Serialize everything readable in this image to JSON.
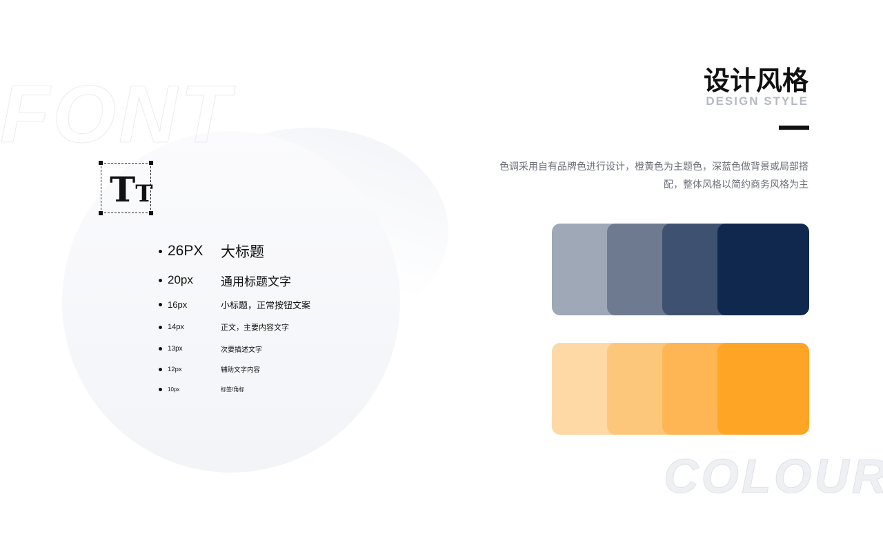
{
  "watermarks": {
    "font": "FONT",
    "colour": "COLOUR"
  },
  "icon": {
    "name": "text-size-icon",
    "big": "T",
    "small": "T"
  },
  "type_scale": [
    {
      "size": "26PX",
      "desc": "大标题"
    },
    {
      "size": "20px",
      "desc": "通用标题文字"
    },
    {
      "size": "16px",
      "desc": "小标题，正常按钮文案"
    },
    {
      "size": "14px",
      "desc": "正文，主要内容文字"
    },
    {
      "size": "13px",
      "desc": "次要描述文字"
    },
    {
      "size": "12px",
      "desc": "辅助文字内容"
    },
    {
      "size": "10px",
      "desc": "标签/角标"
    }
  ],
  "header": {
    "title": "设计风格",
    "subtitle": "DESIGN STYLE"
  },
  "description": "色调采用自有品牌色进行设计，橙黄色为主题色，深蓝色做背景或局部搭配，整体风格以简约商务风格为主",
  "palettes": {
    "blue": [
      "#9fa8b6",
      "#6e7a90",
      "#3e5170",
      "#10284e"
    ],
    "orange": [
      "#fed9a6",
      "#fdc77b",
      "#fdb653",
      "#fea526"
    ]
  }
}
